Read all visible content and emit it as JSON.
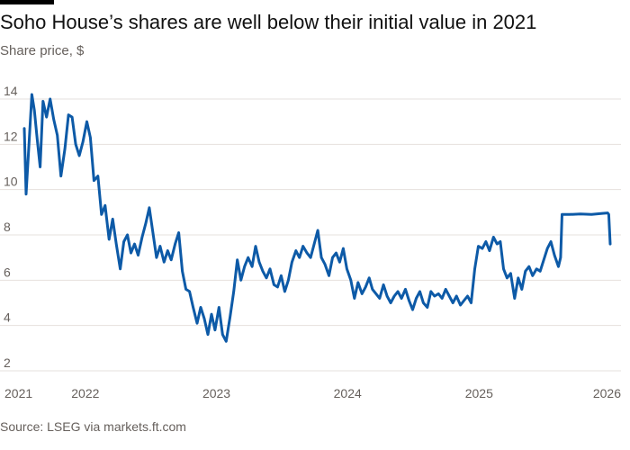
{
  "header": {
    "title": "Soho House’s shares are well below their initial value in 2021",
    "subtitle": "Share price, $"
  },
  "footer": {
    "source": "Source: LSEG via markets.ft.com"
  },
  "colors": {
    "line": "#0d5aa7",
    "grid": "#e6e1dd",
    "text": "#66605c"
  },
  "chart_data": {
    "type": "line",
    "title": "Soho House’s shares are well below their initial value in 2021",
    "ylabel": "Share price, $",
    "ylim": [
      2,
      14
    ],
    "y_ticks": [
      2,
      4,
      6,
      8,
      10,
      12,
      14
    ],
    "xlim": [
      "2021-07-15",
      "2026-01-01"
    ],
    "x_ticks": [
      {
        "date": "2021-07-15",
        "label": "2021"
      },
      {
        "date": "2022-01-01",
        "label": "2022"
      },
      {
        "date": "2023-01-01",
        "label": "2023"
      },
      {
        "date": "2024-01-01",
        "label": "2024"
      },
      {
        "date": "2025-01-01",
        "label": "2025"
      },
      {
        "date": "2026-01-01",
        "label": "2026"
      }
    ],
    "grid": true,
    "series": [
      {
        "points": [
          [
            "2021-07-15",
            12.7
          ],
          [
            "2021-07-20",
            9.8
          ],
          [
            "2021-07-28",
            12.0
          ],
          [
            "2021-08-05",
            14.2
          ],
          [
            "2021-08-12",
            13.5
          ],
          [
            "2021-08-20",
            12.2
          ],
          [
            "2021-08-28",
            11.0
          ],
          [
            "2021-09-05",
            13.9
          ],
          [
            "2021-09-15",
            13.2
          ],
          [
            "2021-09-25",
            14.0
          ],
          [
            "2021-10-05",
            13.1
          ],
          [
            "2021-10-15",
            12.4
          ],
          [
            "2021-10-25",
            10.6
          ],
          [
            "2021-11-05",
            11.8
          ],
          [
            "2021-11-15",
            13.3
          ],
          [
            "2021-11-25",
            13.2
          ],
          [
            "2021-12-05",
            12.0
          ],
          [
            "2021-12-15",
            11.5
          ],
          [
            "2021-12-25",
            12.1
          ],
          [
            "2022-01-05",
            13.0
          ],
          [
            "2022-01-15",
            12.3
          ],
          [
            "2022-01-25",
            10.4
          ],
          [
            "2022-02-05",
            10.6
          ],
          [
            "2022-02-15",
            8.9
          ],
          [
            "2022-02-25",
            9.3
          ],
          [
            "2022-03-08",
            7.8
          ],
          [
            "2022-03-18",
            8.7
          ],
          [
            "2022-03-28",
            7.6
          ],
          [
            "2022-04-08",
            6.5
          ],
          [
            "2022-04-18",
            7.7
          ],
          [
            "2022-04-28",
            8.0
          ],
          [
            "2022-05-08",
            7.2
          ],
          [
            "2022-05-18",
            7.6
          ],
          [
            "2022-05-28",
            7.1
          ],
          [
            "2022-06-08",
            7.9
          ],
          [
            "2022-06-18",
            8.5
          ],
          [
            "2022-06-28",
            9.2
          ],
          [
            "2022-07-08",
            8.1
          ],
          [
            "2022-07-18",
            7.0
          ],
          [
            "2022-07-28",
            7.5
          ],
          [
            "2022-08-08",
            6.8
          ],
          [
            "2022-08-18",
            7.3
          ],
          [
            "2022-08-28",
            6.9
          ],
          [
            "2022-09-08",
            7.6
          ],
          [
            "2022-09-18",
            8.1
          ],
          [
            "2022-09-28",
            6.4
          ],
          [
            "2022-10-08",
            5.6
          ],
          [
            "2022-10-18",
            5.5
          ],
          [
            "2022-10-28",
            4.8
          ],
          [
            "2022-11-08",
            4.1
          ],
          [
            "2022-11-18",
            4.8
          ],
          [
            "2022-11-28",
            4.3
          ],
          [
            "2022-12-08",
            3.6
          ],
          [
            "2022-12-18",
            4.5
          ],
          [
            "2022-12-28",
            3.8
          ],
          [
            "2023-01-08",
            4.8
          ],
          [
            "2023-01-18",
            3.6
          ],
          [
            "2023-01-28",
            3.3
          ],
          [
            "2023-02-08",
            4.4
          ],
          [
            "2023-02-18",
            5.5
          ],
          [
            "2023-02-28",
            6.9
          ],
          [
            "2023-03-10",
            6.0
          ],
          [
            "2023-03-20",
            6.6
          ],
          [
            "2023-03-30",
            7.0
          ],
          [
            "2023-04-10",
            6.6
          ],
          [
            "2023-04-20",
            7.5
          ],
          [
            "2023-04-30",
            6.8
          ],
          [
            "2023-05-10",
            6.4
          ],
          [
            "2023-05-20",
            6.1
          ],
          [
            "2023-05-30",
            6.5
          ],
          [
            "2023-06-10",
            5.8
          ],
          [
            "2023-06-20",
            5.7
          ],
          [
            "2023-06-30",
            6.2
          ],
          [
            "2023-07-10",
            5.5
          ],
          [
            "2023-07-20",
            6.0
          ],
          [
            "2023-07-30",
            6.8
          ],
          [
            "2023-08-10",
            7.3
          ],
          [
            "2023-08-20",
            7.0
          ],
          [
            "2023-08-30",
            7.5
          ],
          [
            "2023-09-10",
            7.2
          ],
          [
            "2023-09-20",
            7.0
          ],
          [
            "2023-09-30",
            7.6
          ],
          [
            "2023-10-10",
            8.2
          ],
          [
            "2023-10-20",
            7.0
          ],
          [
            "2023-10-30",
            6.7
          ],
          [
            "2023-11-10",
            6.2
          ],
          [
            "2023-11-20",
            7.0
          ],
          [
            "2023-11-30",
            7.2
          ],
          [
            "2023-12-10",
            6.8
          ],
          [
            "2023-12-20",
            7.4
          ],
          [
            "2023-12-30",
            6.5
          ],
          [
            "2024-01-10",
            6.0
          ],
          [
            "2024-01-20",
            5.2
          ],
          [
            "2024-01-30",
            5.9
          ],
          [
            "2024-02-10",
            5.4
          ],
          [
            "2024-02-20",
            5.7
          ],
          [
            "2024-03-01",
            6.1
          ],
          [
            "2024-03-10",
            5.6
          ],
          [
            "2024-03-20",
            5.4
          ],
          [
            "2024-03-30",
            5.2
          ],
          [
            "2024-04-10",
            5.8
          ],
          [
            "2024-04-20",
            5.3
          ],
          [
            "2024-04-30",
            5.0
          ],
          [
            "2024-05-10",
            5.3
          ],
          [
            "2024-05-20",
            5.5
          ],
          [
            "2024-05-30",
            5.2
          ],
          [
            "2024-06-10",
            5.6
          ],
          [
            "2024-06-20",
            5.1
          ],
          [
            "2024-06-30",
            4.7
          ],
          [
            "2024-07-10",
            5.2
          ],
          [
            "2024-07-20",
            5.5
          ],
          [
            "2024-07-30",
            5.0
          ],
          [
            "2024-08-10",
            4.8
          ],
          [
            "2024-08-20",
            5.5
          ],
          [
            "2024-08-30",
            5.3
          ],
          [
            "2024-09-10",
            5.4
          ],
          [
            "2024-09-20",
            5.2
          ],
          [
            "2024-09-30",
            5.6
          ],
          [
            "2024-10-10",
            5.3
          ],
          [
            "2024-10-20",
            5.0
          ],
          [
            "2024-10-30",
            5.3
          ],
          [
            "2024-11-10",
            4.9
          ],
          [
            "2024-11-20",
            5.1
          ],
          [
            "2024-11-30",
            5.3
          ],
          [
            "2024-12-10",
            5.0
          ],
          [
            "2024-12-20",
            6.5
          ],
          [
            "2024-12-30",
            7.5
          ],
          [
            "2025-01-10",
            7.4
          ],
          [
            "2025-01-20",
            7.7
          ],
          [
            "2025-01-30",
            7.3
          ],
          [
            "2025-02-10",
            7.9
          ],
          [
            "2025-02-20",
            7.6
          ],
          [
            "2025-03-01",
            7.7
          ],
          [
            "2025-03-10",
            6.5
          ],
          [
            "2025-03-20",
            6.1
          ],
          [
            "2025-03-30",
            6.3
          ],
          [
            "2025-04-10",
            5.2
          ],
          [
            "2025-04-20",
            6.1
          ],
          [
            "2025-04-30",
            5.6
          ],
          [
            "2025-05-10",
            6.4
          ],
          [
            "2025-05-20",
            6.6
          ],
          [
            "2025-05-30",
            6.2
          ],
          [
            "2025-06-10",
            6.5
          ],
          [
            "2025-06-20",
            6.4
          ],
          [
            "2025-06-30",
            6.9
          ],
          [
            "2025-07-10",
            7.4
          ],
          [
            "2025-07-20",
            7.7
          ],
          [
            "2025-07-30",
            7.1
          ],
          [
            "2025-08-10",
            6.6
          ],
          [
            "2025-08-16",
            7.0
          ],
          [
            "2025-08-20",
            8.9
          ],
          [
            "2025-09-10",
            8.9
          ],
          [
            "2025-10-10",
            8.92
          ],
          [
            "2025-11-10",
            8.9
          ],
          [
            "2025-12-10",
            8.95
          ],
          [
            "2025-12-25",
            8.97
          ],
          [
            "2025-12-28",
            8.9
          ],
          [
            "2026-01-01",
            7.6
          ]
        ]
      }
    ]
  }
}
